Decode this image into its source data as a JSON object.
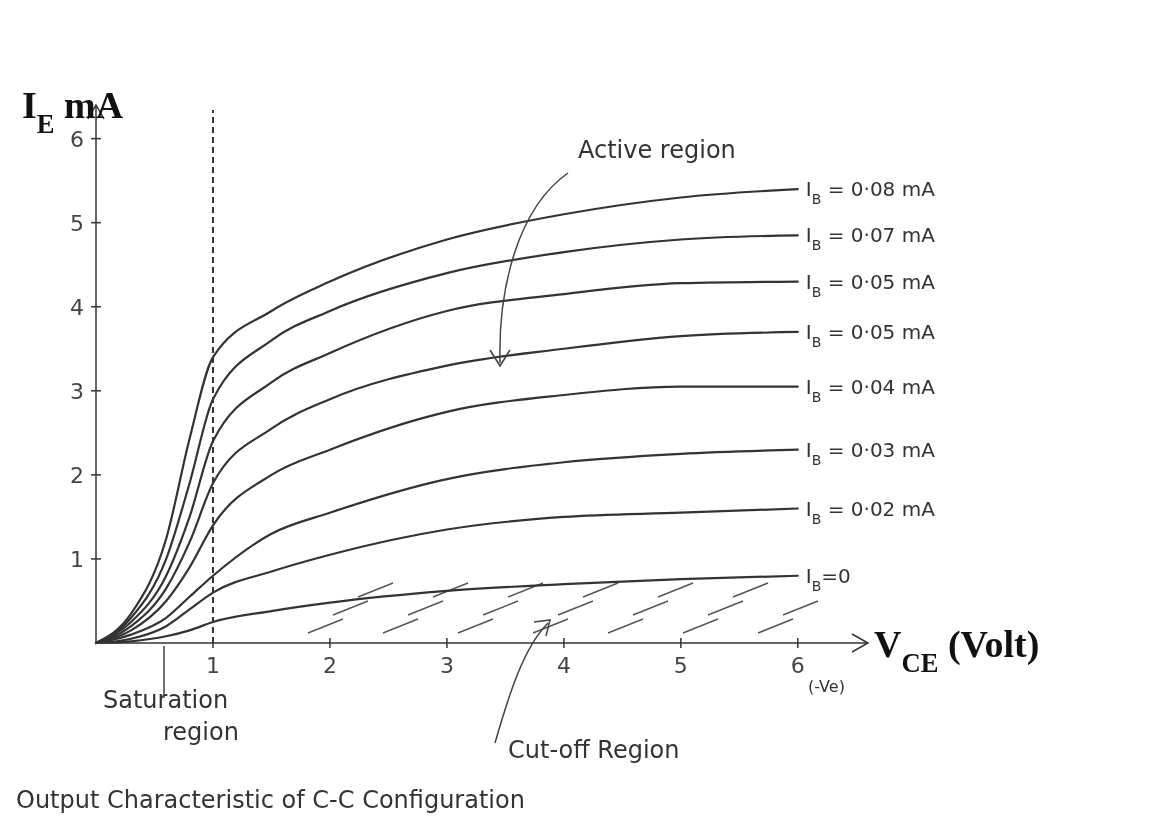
{
  "chart_data": {
    "type": "line",
    "title": "Output Characteristic of C-C Configuration",
    "xlabel": "V$_{CE}$ (Volt)",
    "ylabel": "I$_{E}$ mA",
    "annotations": [
      "Active region",
      "(-Ve)",
      "Saturation region",
      "Cut-off Region"
    ],
    "x": [
      0,
      0.3,
      0.6,
      0.8,
      1,
      1.5,
      2,
      3,
      4,
      5,
      6
    ],
    "series": [
      {
        "name": "I$_{B}$ = 0·08 mA",
        "color": "#333333",
        "values": [
          0,
          0.35,
          1.24,
          2.43,
          3.4,
          3.95,
          4.3,
          4.8,
          5.1,
          5.3,
          5.4
        ]
      },
      {
        "name": "I$_{B}$ = 0·07 mA",
        "color": "#333333",
        "values": [
          0,
          0.3,
          1.0,
          1.9,
          2.9,
          3.6,
          3.95,
          4.4,
          4.65,
          4.8,
          4.85
        ]
      },
      {
        "name": "I$_{B}$ = 0·05 mA",
        "color": "#333333",
        "values": [
          0,
          0.25,
          0.8,
          1.5,
          2.4,
          3.1,
          3.45,
          3.95,
          4.15,
          4.28,
          4.3
        ]
      },
      {
        "name": "I$_{B}$ = 0·05 mA",
        "color": "#333333",
        "values": [
          0,
          0.2,
          0.65,
          1.2,
          1.9,
          2.55,
          2.9,
          3.3,
          3.5,
          3.65,
          3.7
        ]
      },
      {
        "name": "I$_{B}$ = 0·04 mA",
        "color": "#333333",
        "values": [
          0,
          0.15,
          0.5,
          0.9,
          1.4,
          2.0,
          2.3,
          2.75,
          2.95,
          3.05,
          3.05
        ]
      },
      {
        "name": "I$_{B}$ = 0·03 mA",
        "color": "#333333",
        "values": [
          0,
          0.1,
          0.3,
          0.55,
          0.8,
          1.3,
          1.55,
          1.95,
          2.15,
          2.25,
          2.3
        ]
      },
      {
        "name": "I$_{B}$ = 0·02 mA",
        "color": "#333333",
        "values": [
          0,
          0.05,
          0.2,
          0.4,
          0.6,
          0.85,
          1.05,
          1.35,
          1.5,
          1.55,
          1.6
        ]
      },
      {
        "name": "I$_{B}$=0",
        "color": "#333333",
        "values": [
          0,
          0.02,
          0.08,
          0.15,
          0.25,
          0.38,
          0.48,
          0.62,
          0.7,
          0.76,
          0.8
        ]
      }
    ],
    "xlim": [
      0,
      6.6
    ],
    "xticks": [
      1,
      2,
      3,
      4,
      5,
      6
    ],
    "ylim": [
      0,
      6.4
    ],
    "yticks": [
      1,
      2,
      3,
      4,
      5,
      6
    ],
    "ref_lines": [
      {
        "axis": "x",
        "value": 1,
        "color": "#333333",
        "line_style": "dashed"
      }
    ],
    "grid": false,
    "marker": "none",
    "line_style": "solid"
  }
}
